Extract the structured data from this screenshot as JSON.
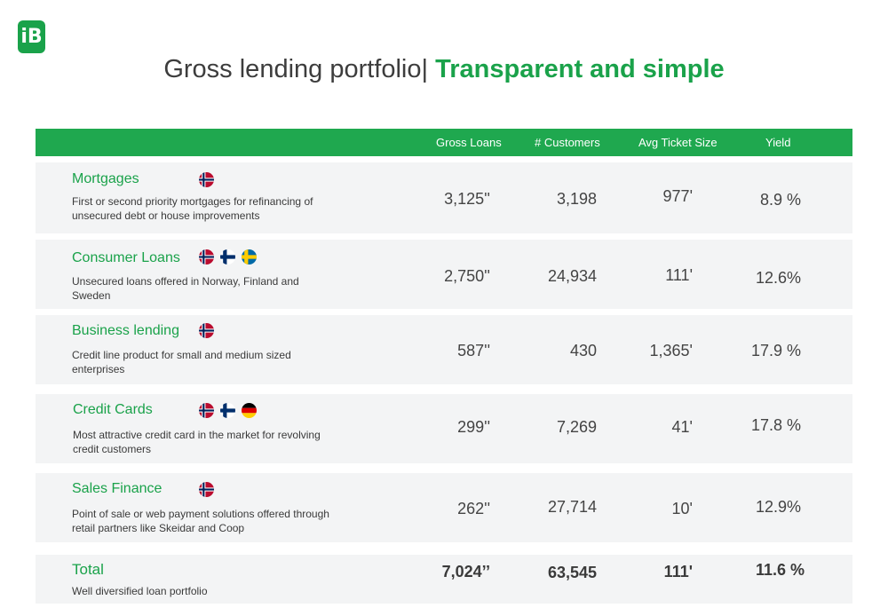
{
  "logo_text": "iB",
  "title": {
    "main": "Gross lending portfolio",
    "separator": "|",
    "accent": " Transparent and simple"
  },
  "columns": {
    "gross_loans": "Gross Loans",
    "customers": "# Customers",
    "avg_ticket": "Avg Ticket Size",
    "yield": "Yield"
  },
  "rows": [
    {
      "name": "Mortgages",
      "desc": "First or second priority mortgages for refinancing of unsecured debt or house improvements",
      "flags": [
        "norway-flag-icon"
      ],
      "gross": "3,125''",
      "customers": "3,198",
      "ticket": "977'",
      "yield": "8.9 %"
    },
    {
      "name": "Consumer Loans",
      "desc": "Unsecured loans offered in Norway, Finland and Sweden",
      "flags": [
        "norway-flag-icon",
        "finland-flag-icon",
        "sweden-flag-icon"
      ],
      "gross": "2,750''",
      "customers": "24,934",
      "ticket": "111'",
      "yield": "12.6%"
    },
    {
      "name": "Business lending",
      "desc": "Credit line product for small and medium sized enterprises",
      "flags": [
        "norway-flag-icon"
      ],
      "gross": "587''",
      "customers": "430",
      "ticket": "1,365'",
      "yield": "17.9 %"
    },
    {
      "name": "Credit Cards",
      "desc": "Most attractive credit card in the market for revolving credit customers",
      "flags": [
        "norway-flag-icon",
        "finland-flag-icon",
        "germany-flag-icon"
      ],
      "gross": "299''",
      "customers": "7,269",
      "ticket": "41'",
      "yield": "17.8 %"
    },
    {
      "name": "Sales Finance",
      "desc": "Point of sale or web payment solutions offered through retail partners like Skeidar and Coop",
      "flags": [
        "norway-flag-icon"
      ],
      "gross": "262''",
      "customers": "27,714",
      "ticket": "10'",
      "yield": "12.9%"
    }
  ],
  "total": {
    "name": "Total",
    "desc": "Well diversified loan portfolio",
    "gross": "7,024’’",
    "customers": "63,545",
    "ticket": "111'",
    "yield": "11.6 %"
  },
  "colors": {
    "brand_green": "#1aa24a",
    "header_green": "#1fa84f",
    "row_bg": "#f3f4f5"
  }
}
